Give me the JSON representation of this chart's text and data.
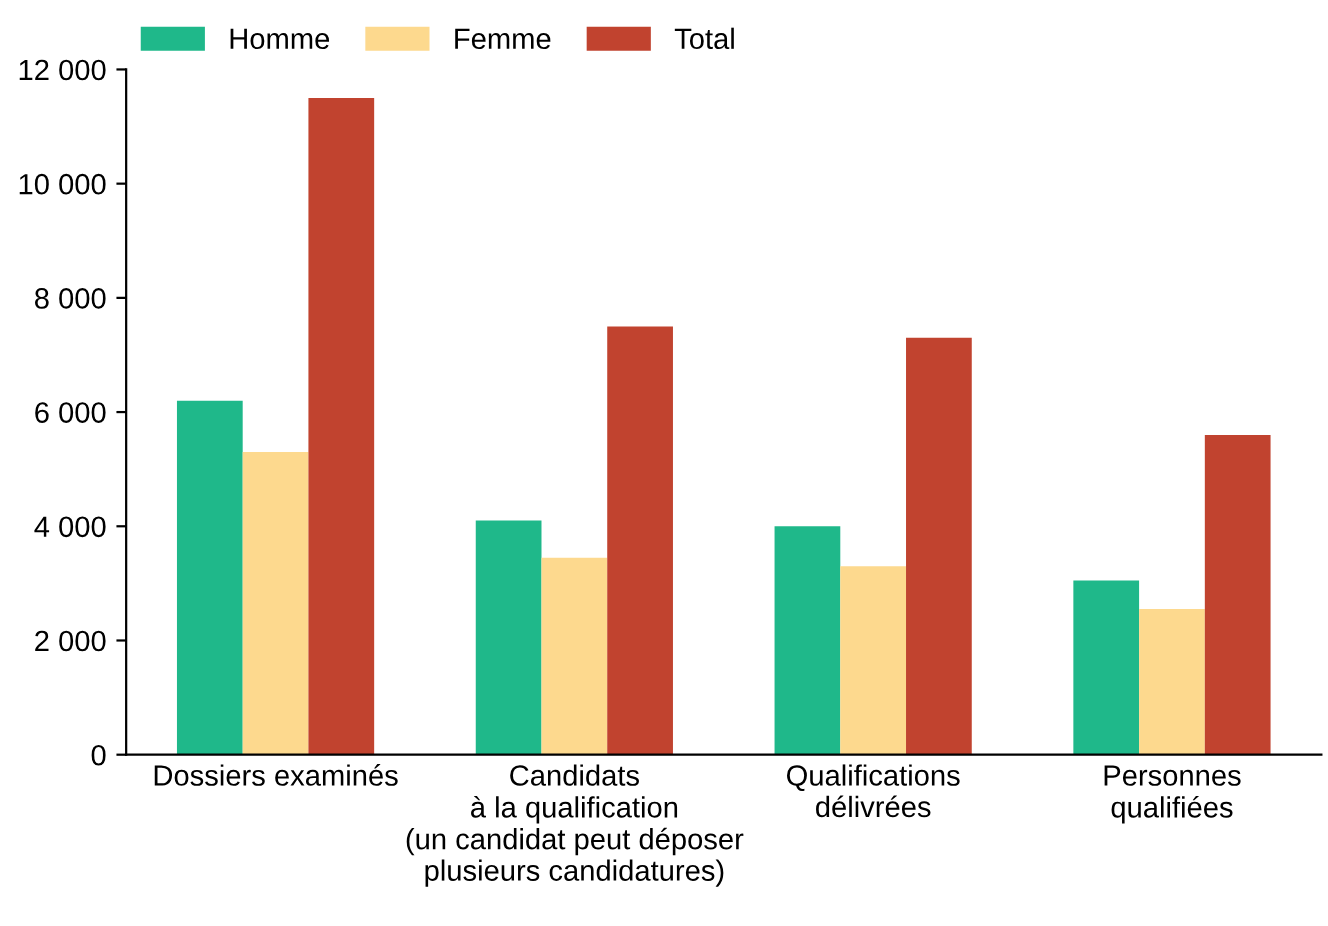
{
  "chart_data": {
    "type": "bar",
    "categories": [
      "Dossiers examinés",
      "Candidats\nà la qualification\n(un candidat peut déposer\nplusieurs candidatures)",
      "Qualifications\ndélivrées",
      "Personnes\nqualifiées"
    ],
    "series": [
      {
        "name": "Homme",
        "color": "#1fb88a",
        "values": [
          6200,
          4100,
          4000,
          3050
        ]
      },
      {
        "name": "Femme",
        "color": "#fdd98e",
        "values": [
          5300,
          3450,
          3300,
          2550
        ]
      },
      {
        "name": "Total",
        "color": "#c1432f",
        "values": [
          11500,
          7500,
          7300,
          5600
        ]
      }
    ],
    "ylim": [
      0,
      12000
    ],
    "yticks": [
      0,
      {
        "value": 2000,
        "label": "2 000"
      },
      {
        "value": 4000,
        "label": "4 000"
      },
      {
        "value": 6000,
        "label": "6 000"
      },
      {
        "value": 8000,
        "label": "8 000"
      },
      {
        "value": 10000,
        "label": "10 000"
      },
      {
        "value": 12000,
        "label": "12 000"
      }
    ],
    "grid": false,
    "legend": "top left"
  }
}
